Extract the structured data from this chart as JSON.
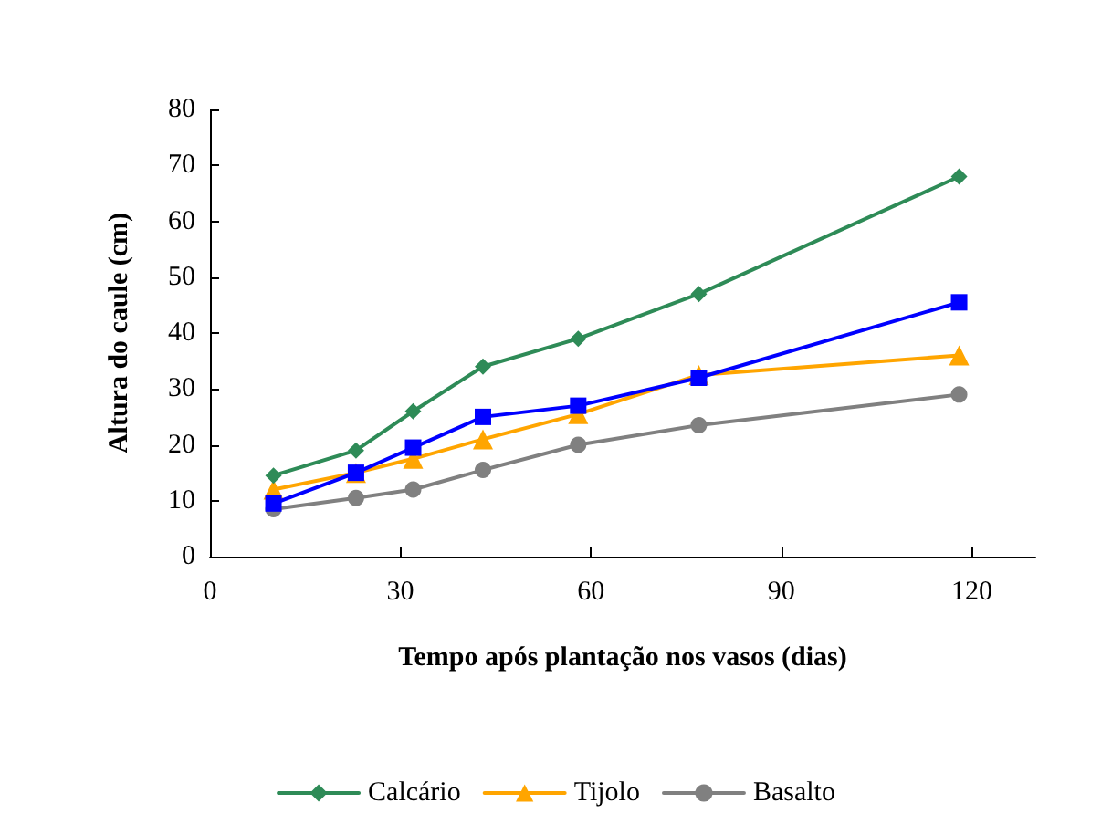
{
  "chart_data": {
    "type": "line",
    "xlabel": "Tempo após plantação nos vasos (dias)",
    "ylabel": "Altura do caule (cm)",
    "x": [
      10,
      23,
      32,
      43,
      58,
      77,
      118
    ],
    "series": [
      {
        "name": "Calcário",
        "color": "#2e8b57",
        "marker": "diamond",
        "values": [
          14.5,
          19,
          26,
          34,
          39,
          47,
          68
        ]
      },
      {
        "color": "#0000ff",
        "marker": "square",
        "values": [
          9.5,
          15,
          19.5,
          25,
          27,
          32,
          45.5
        ]
      },
      {
        "name": "Tijolo",
        "color": "#ffa500",
        "marker": "triangle",
        "values": [
          12,
          15,
          17.5,
          21,
          25.5,
          32.5,
          36
        ]
      },
      {
        "name": "Basalto",
        "color": "#808080",
        "marker": "circle",
        "values": [
          8.5,
          10.5,
          12,
          15.5,
          20,
          23.5,
          29
        ]
      }
    ],
    "xlim": [
      0,
      130
    ],
    "xticks": [
      0,
      30,
      60,
      90,
      120
    ],
    "ylim": [
      0,
      80
    ],
    "yticks": [
      0,
      10,
      20,
      30,
      40,
      50,
      60,
      70,
      80
    ],
    "grid": false,
    "legend": "bottom",
    "line_style": "solid"
  }
}
